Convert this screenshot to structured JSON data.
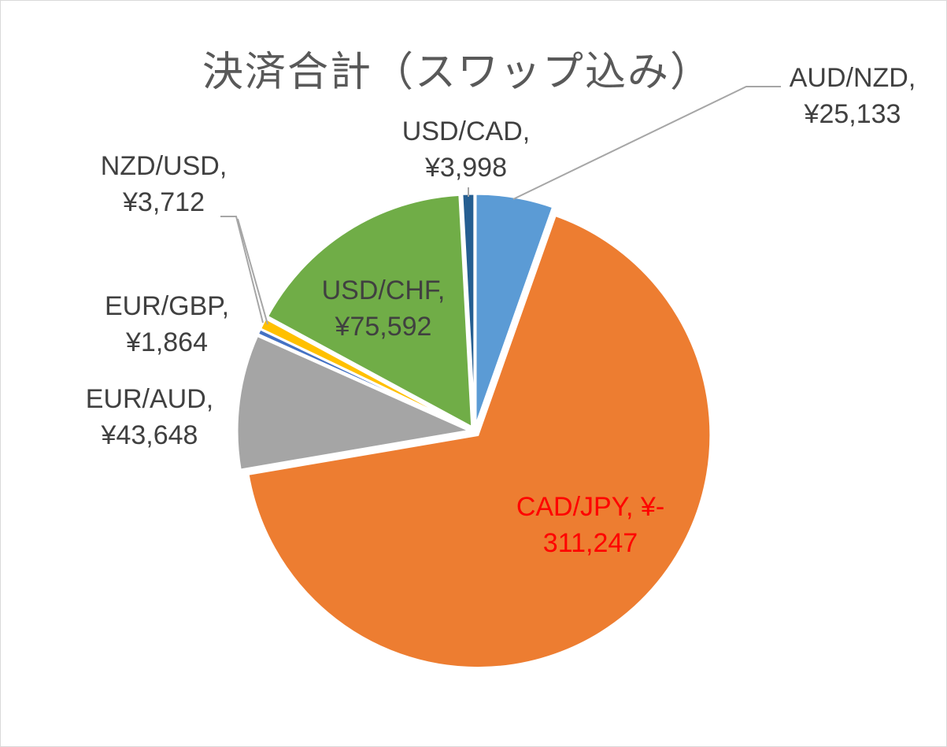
{
  "chart_data": {
    "type": "pie",
    "title": "決済合計（スワップ込み）",
    "slices": [
      {
        "label_line1": "AUD/NZD,",
        "label_line2": "¥25,133",
        "value": 25133,
        "color": "#5b9bd5"
      },
      {
        "label_line1": "CAD/JPY, ¥-",
        "label_line2": "311,247",
        "value": -311247,
        "color": "#ed7d31",
        "label_color": "#ff0000"
      },
      {
        "label_line1": "EUR/AUD,",
        "label_line2": "¥43,648",
        "value": 43648,
        "color": "#a5a5a5"
      },
      {
        "label_line1": "EUR/GBP,",
        "label_line2": "¥1,864",
        "value": 1864,
        "color": "#4472c4"
      },
      {
        "label_line1": "NZD/USD,",
        "label_line2": "¥3,712",
        "value": 3712,
        "color": "#ffc000"
      },
      {
        "label_line1": "USD/CHF,",
        "label_line2": "¥75,592",
        "value": 75592,
        "color": "#70ad47"
      },
      {
        "label_line1": "USD/CAD,",
        "label_line2": "¥3,998",
        "value": 3998,
        "color": "#255e91"
      }
    ],
    "legend": "none",
    "leader_line_color": "#a6a6a6",
    "background": "#ffffff"
  }
}
